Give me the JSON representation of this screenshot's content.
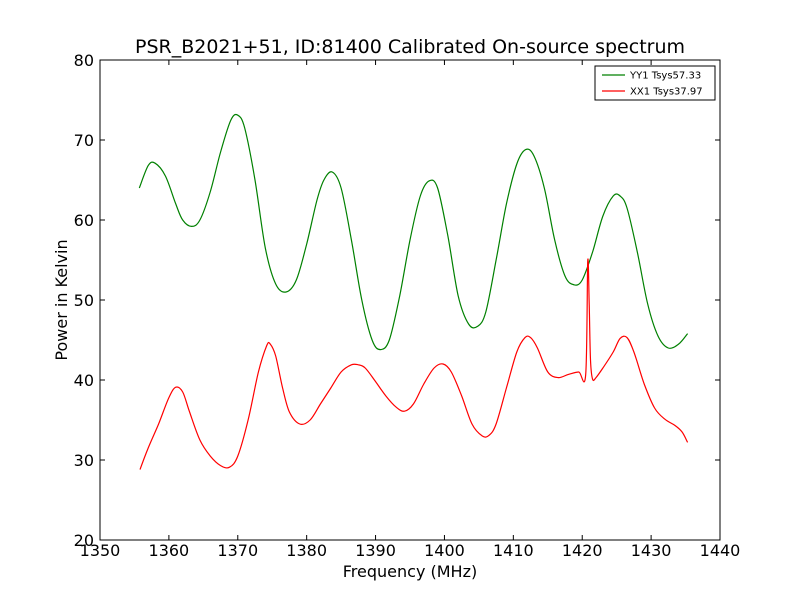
{
  "chart_data": {
    "type": "line",
    "title": "PSR_B2021+51, ID:81400 Calibrated On-source spectrum",
    "xlabel": "Frequency (MHz)",
    "ylabel": "Power in Kelvin",
    "xlim": [
      1350,
      1440
    ],
    "ylim": [
      20,
      80
    ],
    "xticks": [
      1350,
      1360,
      1370,
      1380,
      1390,
      1400,
      1410,
      1420,
      1430,
      1440
    ],
    "yticks": [
      20,
      30,
      40,
      50,
      60,
      70,
      80
    ],
    "grid": false,
    "legend_position": "top-right",
    "series": [
      {
        "name": "YY1 Tsys57.33",
        "color": "#008000",
        "x": [
          1355.7,
          1357.0,
          1358.0,
          1359.5,
          1361.0,
          1362.0,
          1363.3,
          1364.5,
          1366.0,
          1367.5,
          1369.0,
          1370.0,
          1371.0,
          1372.5,
          1374.0,
          1375.5,
          1377.0,
          1378.5,
          1380.0,
          1381.5,
          1382.5,
          1383.7,
          1385.0,
          1386.5,
          1388.0,
          1389.5,
          1390.7,
          1392.0,
          1393.5,
          1395.0,
          1396.5,
          1397.8,
          1399.0,
          1400.5,
          1402.0,
          1403.5,
          1404.8,
          1406.0,
          1407.5,
          1409.0,
          1410.5,
          1411.8,
          1413.0,
          1414.5,
          1416.0,
          1417.5,
          1418.8,
          1420.0,
          1421.5,
          1423.0,
          1424.5,
          1425.5,
          1426.5,
          1428.0,
          1429.5,
          1431.0,
          1432.5,
          1434.0,
          1435.3
        ],
        "values": [
          64.0,
          66.8,
          67.1,
          65.5,
          62.0,
          60.0,
          59.2,
          60.0,
          63.5,
          68.5,
          72.5,
          73.1,
          71.5,
          65.0,
          56.5,
          52.0,
          51.0,
          52.5,
          57.0,
          62.5,
          65.0,
          66.0,
          64.0,
          57.5,
          50.0,
          45.0,
          43.8,
          45.0,
          50.5,
          57.5,
          63.0,
          64.9,
          64.0,
          58.0,
          50.5,
          47.0,
          46.7,
          48.5,
          55.0,
          62.0,
          67.0,
          68.8,
          68.0,
          64.0,
          57.5,
          53.0,
          51.9,
          52.5,
          56.0,
          60.5,
          63.0,
          63.0,
          61.5,
          56.0,
          49.5,
          45.5,
          44.0,
          44.5,
          45.8
        ]
      },
      {
        "name": "XX1 Tsys37.97",
        "color": "#ff0000",
        "x": [
          1355.8,
          1357.0,
          1358.5,
          1360.0,
          1361.0,
          1362.0,
          1363.0,
          1364.5,
          1366.0,
          1367.5,
          1368.8,
          1370.0,
          1371.5,
          1373.0,
          1374.2,
          1374.7,
          1375.5,
          1376.5,
          1377.5,
          1379.0,
          1380.5,
          1382.0,
          1383.5,
          1385.0,
          1386.5,
          1387.5,
          1388.5,
          1390.0,
          1391.5,
          1393.0,
          1394.2,
          1395.5,
          1397.0,
          1398.5,
          1399.8,
          1401.0,
          1402.5,
          1404.0,
          1405.5,
          1406.5,
          1407.5,
          1409.0,
          1410.5,
          1411.7,
          1412.5,
          1413.5,
          1415.0,
          1416.5,
          1418.0,
          1419.5,
          1420.5,
          1420.8,
          1421.0,
          1421.2,
          1421.5,
          1422.0,
          1423.0,
          1424.5,
          1425.5,
          1426.5,
          1427.5,
          1429.0,
          1430.5,
          1432.0,
          1433.5,
          1434.5,
          1435.3
        ],
        "values": [
          28.8,
          31.5,
          34.5,
          37.8,
          39.1,
          38.5,
          36.0,
          32.5,
          30.5,
          29.3,
          29.1,
          30.5,
          35.0,
          41.0,
          44.3,
          44.5,
          43.0,
          39.0,
          36.0,
          34.5,
          35.0,
          37.0,
          39.0,
          41.0,
          41.9,
          41.9,
          41.5,
          39.8,
          38.0,
          36.6,
          36.1,
          37.0,
          39.5,
          41.5,
          42.0,
          41.0,
          38.0,
          34.5,
          33.0,
          33.1,
          34.5,
          39.0,
          43.5,
          45.3,
          45.3,
          44.0,
          41.0,
          40.3,
          40.7,
          41.0,
          40.7,
          54.8,
          50.0,
          42.5,
          40.1,
          40.3,
          41.5,
          43.5,
          45.2,
          45.3,
          43.5,
          39.5,
          36.5,
          35.1,
          34.3,
          33.5,
          32.2
        ]
      }
    ]
  }
}
